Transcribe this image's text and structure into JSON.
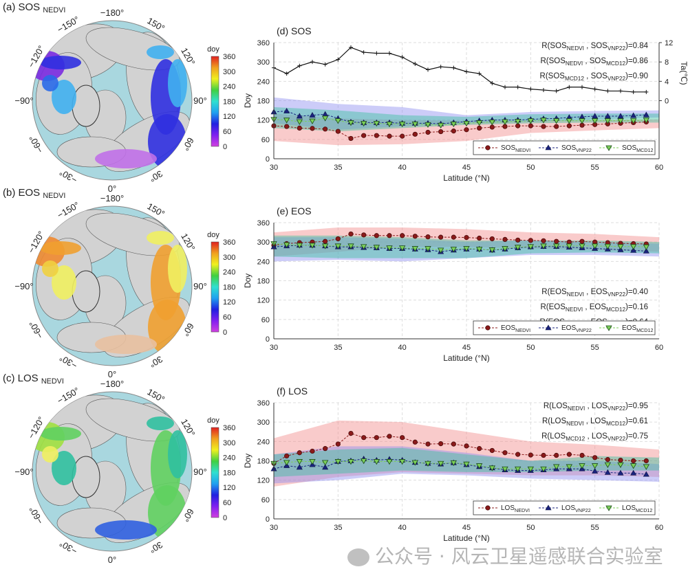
{
  "maps": {
    "colorbar": {
      "unit": "doy",
      "ticks": [
        "360",
        "300",
        "240",
        "180",
        "120",
        "60",
        "0"
      ],
      "colors": [
        "#d040e0",
        "#8020f0",
        "#2020e0",
        "#20a0f0",
        "#30e0d0",
        "#40d040",
        "#f0f020",
        "#f0a020",
        "#e02020"
      ]
    },
    "lon_labels": [
      "−180°",
      "150°",
      "120°",
      "90°",
      "60°",
      "30°",
      "0°",
      "−30°",
      "−60°",
      "−90°",
      "−120°",
      "−150°"
    ],
    "ocean_color": "#a9d7df",
    "land_color": "#d2d2d2",
    "panels": [
      {
        "label": "(a) SOS",
        "sub": "NEDVI",
        "patch_colors": [
          "#7a2ae0",
          "#3030e0",
          "#2a6ae8",
          "#40b0f0",
          "#c070e8"
        ]
      },
      {
        "label": "(b) EOS",
        "sub": "NEDVI",
        "patch_colors": [
          "#f08a30",
          "#f0a030",
          "#f0d040",
          "#f0f060",
          "#e8c0a0"
        ]
      },
      {
        "label": "(c) LOS",
        "sub": "NEDVI",
        "patch_colors": [
          "#a0e040",
          "#60d060",
          "#f0f060",
          "#30c0a0",
          "#3060e0"
        ]
      }
    ]
  },
  "watermark": "公众号 · 风云卫星遥感联合实验室",
  "chart_data": [
    {
      "type": "line",
      "title": "(d) SOS",
      "xlabel": "Latitude (°N)",
      "ylabel": "Doy",
      "xlim": [
        30,
        60
      ],
      "ylim": [
        0,
        360
      ],
      "xticks": [
        "30",
        "35",
        "40",
        "45",
        "50",
        "55",
        "60"
      ],
      "yticks": [
        "0",
        "60",
        "120",
        "180",
        "240",
        "300",
        "360"
      ],
      "grid": true,
      "legend": "bottom-right",
      "y2": {
        "label": "Ta(℃)",
        "ylim": [
          -12,
          12
        ],
        "ticks": [
          "0",
          "4",
          "8",
          "12"
        ],
        "color": "#111111",
        "x": [
          30,
          31,
          32,
          33,
          34,
          35,
          36,
          37,
          38,
          39,
          40,
          41,
          42,
          43,
          44,
          45,
          46,
          47,
          48,
          49,
          50,
          51,
          52,
          53,
          54,
          55,
          56,
          57,
          58,
          59
        ],
        "values": [
          6.8,
          5.6,
          7.2,
          8,
          7.5,
          8.5,
          11,
          10,
          9.8,
          9.8,
          9,
          7.6,
          6.4,
          7,
          6.8,
          6,
          5.6,
          3.6,
          2.8,
          2.8,
          2.4,
          2.2,
          2,
          2.8,
          2.8,
          2.4,
          2,
          2,
          1.8,
          1.8
        ]
      },
      "x": [
        30,
        31,
        32,
        33,
        34,
        35,
        36,
        37,
        38,
        39,
        40,
        41,
        42,
        43,
        44,
        45,
        46,
        47,
        48,
        49,
        50,
        51,
        52,
        53,
        54,
        55,
        56,
        57,
        58,
        59
      ],
      "band_x": [
        30,
        35,
        40,
        45,
        50,
        55,
        60
      ],
      "series": [
        {
          "name": "SOS",
          "sub": "NEDVI",
          "color": "#8b1a1a",
          "band": "#f28b8b",
          "marker": "circle",
          "values": [
            102,
            100,
            95,
            94,
            92,
            85,
            63,
            72,
            72,
            70,
            70,
            76,
            82,
            84,
            86,
            90,
            95,
            98,
            100,
            102,
            102,
            100,
            100,
            102,
            104,
            106,
            108,
            110,
            112,
            114
          ],
          "band_lo": [
            55,
            42,
            45,
            55,
            80,
            88,
            95
          ],
          "band_hi": [
            140,
            125,
            120,
            118,
            118,
            120,
            122
          ]
        },
        {
          "name": "SOS",
          "sub": "VNP22",
          "color": "#1a237e",
          "band": "#8f8ff0",
          "marker": "triangle",
          "values": [
            145,
            148,
            132,
            135,
            138,
            125,
            114,
            112,
            112,
            112,
            110,
            110,
            110,
            108,
            112,
            115,
            118,
            120,
            120,
            120,
            122,
            124,
            125,
            128,
            130,
            132,
            132,
            132,
            134,
            136
          ],
          "band_lo": [
            110,
            90,
            100,
            110,
            115,
            122,
            128
          ],
          "band_hi": [
            190,
            170,
            160,
            135,
            145,
            148,
            150
          ]
        },
        {
          "name": "SOS",
          "sub": "MCD12",
          "color": "#7ccf5a",
          "band": "#3cc0a0",
          "marker": "triangle-down",
          "values": [
            122,
            120,
            115,
            117,
            126,
            118,
            112,
            110,
            110,
            108,
            108,
            108,
            106,
            104,
            108,
            110,
            112,
            114,
            115,
            116,
            118,
            120,
            118,
            118,
            118,
            118,
            118,
            118,
            118,
            120
          ],
          "band_lo": [
            95,
            85,
            95,
            105,
            110,
            112,
            112
          ],
          "band_hi": [
            160,
            150,
            135,
            130,
            138,
            140,
            140
          ]
        }
      ],
      "correlations": [
        {
          "a": "SOS",
          "as": "NEDVI",
          "b": "SOS",
          "bs": "VNP22",
          "value": "0.84"
        },
        {
          "a": "SOS",
          "as": "NEDVI",
          "b": "SOS",
          "bs": "MCD12",
          "value": "0.86"
        },
        {
          "a": "SOS",
          "as": "MCD12",
          "b": "SOS",
          "bs": "VNP22",
          "value": "0.90"
        }
      ]
    },
    {
      "type": "line",
      "title": "(e) EOS",
      "xlabel": "Latitude (°N)",
      "ylabel": "Doy",
      "xlim": [
        30,
        60
      ],
      "ylim": [
        0,
        360
      ],
      "xticks": [
        "30",
        "35",
        "40",
        "45",
        "50",
        "55",
        "60"
      ],
      "yticks": [
        "0",
        "60",
        "120",
        "180",
        "240",
        "300",
        "360"
      ],
      "grid": true,
      "legend": "bottom-right",
      "x": [
        30,
        31,
        32,
        33,
        34,
        35,
        36,
        37,
        38,
        39,
        40,
        41,
        42,
        43,
        44,
        45,
        46,
        47,
        48,
        49,
        50,
        51,
        52,
        53,
        54,
        55,
        56,
        57,
        58,
        59
      ],
      "band_x": [
        30,
        35,
        40,
        45,
        50,
        55,
        60
      ],
      "series": [
        {
          "name": "EOS",
          "sub": "NEDVI",
          "color": "#8b1a1a",
          "band": "#f28b8b",
          "marker": "circle",
          "values": [
            290,
            295,
            298,
            300,
            302,
            310,
            325,
            322,
            320,
            320,
            320,
            318,
            316,
            315,
            315,
            314,
            312,
            310,
            308,
            306,
            305,
            304,
            302,
            300,
            302,
            300,
            298,
            296,
            295,
            294
          ],
          "band_lo": [
            255,
            270,
            285,
            285,
            280,
            275,
            270
          ],
          "band_hi": [
            330,
            345,
            345,
            340,
            330,
            325,
            315
          ]
        },
        {
          "name": "EOS",
          "sub": "VNP22",
          "color": "#1a237e",
          "band": "#8f8ff0",
          "marker": "triangle",
          "values": [
            285,
            288,
            290,
            290,
            288,
            285,
            285,
            283,
            282,
            280,
            280,
            278,
            276,
            270,
            275,
            278,
            278,
            275,
            278,
            282,
            285,
            286,
            286,
            284,
            282,
            280,
            278,
            276,
            274,
            272
          ],
          "band_lo": [
            240,
            245,
            240,
            250,
            260,
            260,
            255
          ],
          "band_hi": [
            315,
            315,
            310,
            300,
            305,
            300,
            295
          ]
        },
        {
          "name": "EOS",
          "sub": "MCD12",
          "color": "#7ccf5a",
          "band": "#3cc0a0",
          "marker": "triangle-down",
          "values": [
            295,
            292,
            290,
            290,
            288,
            288,
            288,
            286,
            284,
            282,
            282,
            280,
            280,
            275,
            278,
            280,
            278,
            276,
            280,
            284,
            286,
            288,
            288,
            288,
            288,
            288,
            287,
            286,
            286,
            285
          ],
          "band_lo": [
            255,
            250,
            250,
            250,
            265,
            268,
            265
          ],
          "band_hi": [
            320,
            320,
            315,
            305,
            305,
            305,
            300
          ]
        }
      ],
      "correlations": [
        {
          "a": "EOS",
          "as": "NEDVI",
          "b": "EOS",
          "bs": "VNP22",
          "value": "0.40"
        },
        {
          "a": "EOS",
          "as": "NEDVI",
          "b": "EOS",
          "bs": "MCD12",
          "value": "0.16"
        },
        {
          "a": "EOS",
          "as": "MCD12",
          "b": "EOS",
          "bs": "VNP22",
          "value": "0.64"
        }
      ]
    },
    {
      "type": "line",
      "title": "(f) LOS",
      "xlabel": "Latitude (°N)",
      "ylabel": "Doy",
      "xlim": [
        30,
        60
      ],
      "ylim": [
        0,
        360
      ],
      "xticks": [
        "30",
        "35",
        "40",
        "45",
        "50",
        "55",
        "60"
      ],
      "yticks": [
        "0",
        "60",
        "120",
        "180",
        "240",
        "300",
        "360"
      ],
      "grid": true,
      "legend": "bottom-right",
      "x": [
        30,
        31,
        32,
        33,
        34,
        35,
        36,
        37,
        38,
        39,
        40,
        41,
        42,
        43,
        44,
        45,
        46,
        47,
        48,
        49,
        50,
        51,
        52,
        53,
        54,
        55,
        56,
        57,
        58,
        59
      ],
      "band_x": [
        30,
        35,
        40,
        45,
        50,
        55,
        60
      ],
      "series": [
        {
          "name": "LOS",
          "sub": "NEDVI",
          "color": "#8b1a1a",
          "band": "#f28b8b",
          "marker": "circle",
          "values": [
            172,
            195,
            205,
            210,
            218,
            232,
            265,
            252,
            252,
            256,
            252,
            238,
            232,
            233,
            232,
            226,
            218,
            212,
            205,
            200,
            198,
            197,
            197,
            200,
            197,
            190,
            184,
            182,
            180,
            180
          ],
          "band_lo": [
            100,
            130,
            145,
            140,
            135,
            135,
            130
          ],
          "band_hi": [
            250,
            305,
            300,
            270,
            240,
            230,
            215
          ]
        },
        {
          "name": "LOS",
          "sub": "VNP22",
          "color": "#1a237e",
          "band": "#8f8ff0",
          "marker": "triangle",
          "values": [
            155,
            165,
            160,
            168,
            160,
            178,
            180,
            186,
            182,
            185,
            182,
            175,
            172,
            170,
            174,
            168,
            162,
            158,
            152,
            150,
            150,
            152,
            155,
            155,
            155,
            148,
            144,
            142,
            142,
            138
          ],
          "band_lo": [
            110,
            120,
            140,
            135,
            125,
            120,
            115
          ],
          "band_hi": [
            200,
            225,
            225,
            205,
            180,
            180,
            170
          ]
        },
        {
          "name": "LOS",
          "sub": "MCD12",
          "color": "#7ccf5a",
          "band": "#3cc0a0",
          "marker": "triangle-down",
          "values": [
            172,
            175,
            178,
            178,
            175,
            178,
            178,
            180,
            178,
            178,
            178,
            175,
            172,
            172,
            174,
            170,
            165,
            158,
            155,
            155,
            155,
            155,
            162,
            162,
            165,
            165,
            168,
            168,
            165,
            162
          ],
          "band_lo": [
            130,
            140,
            150,
            145,
            145,
            150,
            150
          ],
          "band_hi": [
            200,
            215,
            220,
            200,
            180,
            195,
            190
          ]
        }
      ],
      "correlations": [
        {
          "a": "LOS",
          "as": "NEDVI",
          "b": "LOS",
          "bs": "VNP22",
          "value": "0.95"
        },
        {
          "a": "LOS",
          "as": "NEDVI",
          "b": "LOS",
          "bs": "MCD12",
          "value": "0.61"
        },
        {
          "a": "LOS",
          "as": "MCD12",
          "b": "LOS",
          "bs": "VNP22",
          "value": "0.75"
        }
      ]
    }
  ]
}
